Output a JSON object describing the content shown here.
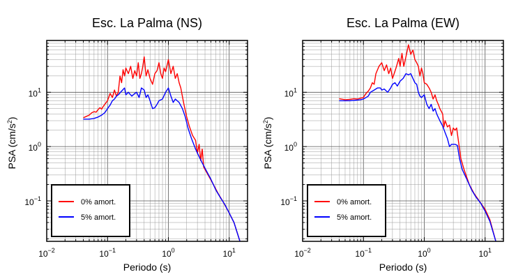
{
  "chart_data": [
    {
      "type": "line",
      "title": "Esc. La Palma (NS)",
      "xlabel": "Periodo (s)",
      "ylabel_main": "PSA (cm/s",
      "ylabel_sup": "2",
      "ylabel_close": ")",
      "x_scale": "log",
      "y_scale": "log",
      "xlim": [
        0.01,
        20
      ],
      "ylim": [
        0.018,
        90
      ],
      "x_tick_labels": [
        {
          "value": 0.01,
          "base": "10",
          "exp": "−2"
        },
        {
          "value": 0.1,
          "base": "10",
          "exp": "−1"
        },
        {
          "value": 1,
          "base": "10",
          "exp": "0"
        },
        {
          "value": 10,
          "base": "10",
          "exp": "1"
        }
      ],
      "y_tick_labels": [
        {
          "value": 0.1,
          "base": "10",
          "exp": "−1"
        },
        {
          "value": 1,
          "base": "10",
          "exp": "0"
        },
        {
          "value": 10,
          "base": "10",
          "exp": "1"
        }
      ],
      "grid": true,
      "legend_position": "bottom-left",
      "series": [
        {
          "name": "0% amort.",
          "color": "#ff0000",
          "points": [
            [
              0.04,
              3.4
            ],
            [
              0.045,
              3.6
            ],
            [
              0.05,
              3.8
            ],
            [
              0.055,
              4.2
            ],
            [
              0.06,
              4.4
            ],
            [
              0.065,
              4.3
            ],
            [
              0.07,
              4.8
            ],
            [
              0.075,
              5.2
            ],
            [
              0.08,
              4.9
            ],
            [
              0.085,
              5.5
            ],
            [
              0.09,
              6.0
            ],
            [
              0.1,
              7.0
            ],
            [
              0.11,
              9.5
            ],
            [
              0.12,
              8.0
            ],
            [
              0.13,
              11.0
            ],
            [
              0.14,
              8.5
            ],
            [
              0.15,
              10.0
            ],
            [
              0.16,
              20.0
            ],
            [
              0.17,
              15.0
            ],
            [
              0.18,
              26.0
            ],
            [
              0.19,
              20.0
            ],
            [
              0.2,
              28.0
            ],
            [
              0.22,
              22.0
            ],
            [
              0.24,
              30.0
            ],
            [
              0.26,
              18.0
            ],
            [
              0.28,
              25.0
            ],
            [
              0.3,
              20.0
            ],
            [
              0.32,
              35.0
            ],
            [
              0.34,
              18.0
            ],
            [
              0.36,
              22.0
            ],
            [
              0.38,
              30.0
            ],
            [
              0.4,
              45.0
            ],
            [
              0.43,
              20.0
            ],
            [
              0.46,
              26.0
            ],
            [
              0.5,
              18.0
            ],
            [
              0.55,
              14.0
            ],
            [
              0.6,
              22.0
            ],
            [
              0.65,
              25.0
            ],
            [
              0.7,
              35.0
            ],
            [
              0.75,
              22.0
            ],
            [
              0.8,
              18.0
            ],
            [
              0.85,
              28.0
            ],
            [
              0.9,
              24.0
            ],
            [
              1.0,
              40.0
            ],
            [
              1.1,
              22.0
            ],
            [
              1.2,
              30.0
            ],
            [
              1.3,
              18.0
            ],
            [
              1.4,
              22.0
            ],
            [
              1.5,
              15.0
            ],
            [
              1.6,
              12.0
            ],
            [
              1.8,
              6.0
            ],
            [
              2.0,
              3.5
            ],
            [
              2.2,
              2.4
            ],
            [
              2.5,
              1.6
            ],
            [
              2.8,
              1.3
            ],
            [
              3.0,
              0.75
            ],
            [
              3.2,
              1.1
            ],
            [
              3.4,
              0.55
            ],
            [
              3.6,
              0.9
            ],
            [
              3.8,
              0.42
            ],
            [
              4.5,
              0.3
            ],
            [
              5.5,
              0.2
            ],
            [
              6.5,
              0.14
            ],
            [
              8.0,
              0.095
            ],
            [
              10.0,
              0.06
            ],
            [
              12.0,
              0.04
            ],
            [
              15.0,
              0.018
            ]
          ]
        },
        {
          "name": "5% amort.",
          "color": "#0000ff",
          "points": [
            [
              0.04,
              3.2
            ],
            [
              0.05,
              3.2
            ],
            [
              0.06,
              3.3
            ],
            [
              0.07,
              3.5
            ],
            [
              0.08,
              3.8
            ],
            [
              0.09,
              4.2
            ],
            [
              0.1,
              5.0
            ],
            [
              0.11,
              5.8
            ],
            [
              0.12,
              7.0
            ],
            [
              0.13,
              7.5
            ],
            [
              0.14,
              8.5
            ],
            [
              0.15,
              9.0
            ],
            [
              0.17,
              10.5
            ],
            [
              0.19,
              12.0
            ],
            [
              0.2,
              9.0
            ],
            [
              0.22,
              10.0
            ],
            [
              0.25,
              8.5
            ],
            [
              0.28,
              9.5
            ],
            [
              0.3,
              10.0
            ],
            [
              0.33,
              8.0
            ],
            [
              0.36,
              12.0
            ],
            [
              0.4,
              11.0
            ],
            [
              0.43,
              8.0
            ],
            [
              0.46,
              9.0
            ],
            [
              0.5,
              7.0
            ],
            [
              0.55,
              5.0
            ],
            [
              0.6,
              5.2
            ],
            [
              0.65,
              6.0
            ],
            [
              0.7,
              7.0
            ],
            [
              0.8,
              7.5
            ],
            [
              0.9,
              10.0
            ],
            [
              1.0,
              12.0
            ],
            [
              1.1,
              8.5
            ],
            [
              1.2,
              6.5
            ],
            [
              1.3,
              7.5
            ],
            [
              1.5,
              6.5
            ],
            [
              1.7,
              5.0
            ],
            [
              1.9,
              3.5
            ],
            [
              2.1,
              2.2
            ],
            [
              2.4,
              1.4
            ],
            [
              2.8,
              0.9
            ],
            [
              3.2,
              0.65
            ],
            [
              3.6,
              0.5
            ],
            [
              4.2,
              0.36
            ],
            [
              5.0,
              0.25
            ],
            [
              6.0,
              0.16
            ],
            [
              7.0,
              0.12
            ],
            [
              8.5,
              0.085
            ],
            [
              10.0,
              0.06
            ],
            [
              12.0,
              0.04
            ],
            [
              15.0,
              0.018
            ]
          ]
        }
      ]
    },
    {
      "type": "line",
      "title": "Esc. La Palma (EW)",
      "xlabel": "Periodo (s)",
      "ylabel_main": "PSA (cm/s",
      "ylabel_sup": "2",
      "ylabel_close": ")",
      "x_scale": "log",
      "y_scale": "log",
      "xlim": [
        0.01,
        20
      ],
      "ylim": [
        0.018,
        90
      ],
      "x_tick_labels": [
        {
          "value": 0.01,
          "base": "10",
          "exp": "−2"
        },
        {
          "value": 0.1,
          "base": "10",
          "exp": "−1"
        },
        {
          "value": 1,
          "base": "10",
          "exp": "0"
        },
        {
          "value": 10,
          "base": "10",
          "exp": "1"
        }
      ],
      "y_tick_labels": [
        {
          "value": 0.1,
          "base": "10",
          "exp": "−1"
        },
        {
          "value": 1,
          "base": "10",
          "exp": "0"
        },
        {
          "value": 10,
          "base": "10",
          "exp": "1"
        }
      ],
      "grid": true,
      "legend_position": "bottom-left",
      "series": [
        {
          "name": "0% amort.",
          "color": "#ff0000",
          "points": [
            [
              0.04,
              7.6
            ],
            [
              0.05,
              7.3
            ],
            [
              0.06,
              7.4
            ],
            [
              0.07,
              7.6
            ],
            [
              0.08,
              7.5
            ],
            [
              0.09,
              7.8
            ],
            [
              0.1,
              8.0
            ],
            [
              0.11,
              9.5
            ],
            [
              0.12,
              10.5
            ],
            [
              0.13,
              12.0
            ],
            [
              0.14,
              15.0
            ],
            [
              0.15,
              14.0
            ],
            [
              0.16,
              22.0
            ],
            [
              0.18,
              30.0
            ],
            [
              0.2,
              35.0
            ],
            [
              0.22,
              25.0
            ],
            [
              0.24,
              32.0
            ],
            [
              0.26,
              22.0
            ],
            [
              0.28,
              28.0
            ],
            [
              0.3,
              18.0
            ],
            [
              0.32,
              22.0
            ],
            [
              0.35,
              30.0
            ],
            [
              0.38,
              42.0
            ],
            [
              0.4,
              30.0
            ],
            [
              0.43,
              52.0
            ],
            [
              0.46,
              30.0
            ],
            [
              0.5,
              45.0
            ],
            [
              0.55,
              75.0
            ],
            [
              0.6,
              50.0
            ],
            [
              0.65,
              60.0
            ],
            [
              0.7,
              40.0
            ],
            [
              0.75,
              35.0
            ],
            [
              0.8,
              30.0
            ],
            [
              0.85,
              20.0
            ],
            [
              0.9,
              28.0
            ],
            [
              0.95,
              22.0
            ],
            [
              1.0,
              15.0
            ],
            [
              1.1,
              14.0
            ],
            [
              1.2,
              12.0
            ],
            [
              1.3,
              10.0
            ],
            [
              1.4,
              7.5
            ],
            [
              1.5,
              9.0
            ],
            [
              1.6,
              7.0
            ],
            [
              1.7,
              6.0
            ],
            [
              1.8,
              5.0
            ],
            [
              2.0,
              4.0
            ],
            [
              2.1,
              2.3
            ],
            [
              2.2,
              3.0
            ],
            [
              2.4,
              2.3
            ],
            [
              2.6,
              2.5
            ],
            [
              2.8,
              1.6
            ],
            [
              3.0,
              2.2
            ],
            [
              3.2,
              2.0
            ],
            [
              3.4,
              2.2
            ],
            [
              3.6,
              1.4
            ],
            [
              3.8,
              0.9
            ],
            [
              4.0,
              0.6
            ],
            [
              4.5,
              0.38
            ],
            [
              5.0,
              0.27
            ],
            [
              5.5,
              0.2
            ],
            [
              6.5,
              0.14
            ],
            [
              8.0,
              0.1
            ],
            [
              10.0,
              0.07
            ],
            [
              12.0,
              0.045
            ],
            [
              15.0,
              0.018
            ]
          ]
        },
        {
          "name": "5% amort.",
          "color": "#0000ff",
          "points": [
            [
              0.04,
              7.0
            ],
            [
              0.05,
              7.0
            ],
            [
              0.06,
              7.0
            ],
            [
              0.07,
              7.1
            ],
            [
              0.08,
              7.2
            ],
            [
              0.09,
              7.3
            ],
            [
              0.1,
              7.5
            ],
            [
              0.11,
              8.0
            ],
            [
              0.12,
              8.5
            ],
            [
              0.13,
              10.0
            ],
            [
              0.15,
              11.0
            ],
            [
              0.17,
              12.0
            ],
            [
              0.19,
              12.0
            ],
            [
              0.2,
              11.0
            ],
            [
              0.22,
              11.5
            ],
            [
              0.25,
              10.0
            ],
            [
              0.28,
              12.0
            ],
            [
              0.3,
              14.0
            ],
            [
              0.33,
              15.0
            ],
            [
              0.36,
              13.0
            ],
            [
              0.4,
              16.0
            ],
            [
              0.45,
              18.0
            ],
            [
              0.5,
              22.0
            ],
            [
              0.55,
              21.0
            ],
            [
              0.6,
              22.0
            ],
            [
              0.65,
              18.0
            ],
            [
              0.7,
              15.0
            ],
            [
              0.75,
              14.0
            ],
            [
              0.8,
              10.0
            ],
            [
              0.85,
              8.5
            ],
            [
              0.9,
              8.0
            ],
            [
              1.0,
              9.0
            ],
            [
              1.1,
              6.0
            ],
            [
              1.2,
              5.0
            ],
            [
              1.3,
              6.0
            ],
            [
              1.4,
              4.5
            ],
            [
              1.5,
              5.0
            ],
            [
              1.6,
              4.0
            ],
            [
              1.8,
              3.0
            ],
            [
              2.0,
              2.4
            ],
            [
              2.2,
              1.8
            ],
            [
              2.4,
              1.4
            ],
            [
              2.6,
              1.0
            ],
            [
              2.8,
              1.1
            ],
            [
              3.2,
              1.1
            ],
            [
              3.5,
              1.05
            ],
            [
              3.8,
              0.6
            ],
            [
              4.2,
              0.38
            ],
            [
              5.0,
              0.25
            ],
            [
              6.0,
              0.16
            ],
            [
              7.0,
              0.12
            ],
            [
              8.5,
              0.09
            ],
            [
              10.0,
              0.065
            ],
            [
              12.0,
              0.042
            ],
            [
              15.0,
              0.018
            ]
          ]
        }
      ]
    }
  ]
}
